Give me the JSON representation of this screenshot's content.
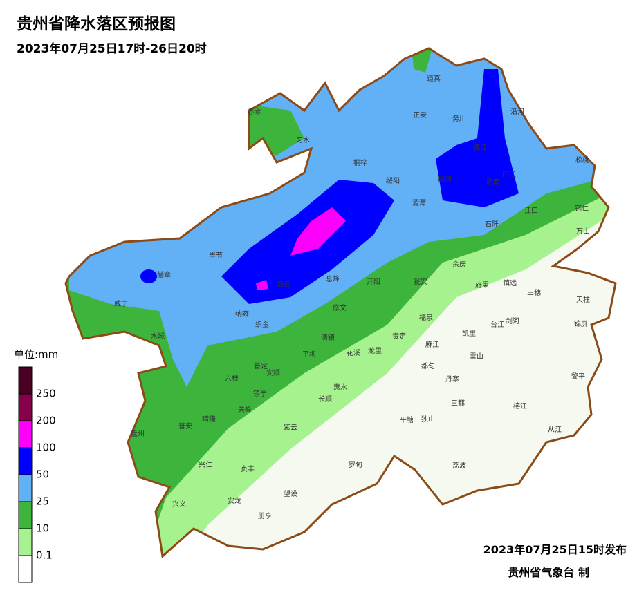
{
  "header": {
    "title": "贵州省降水落区预报图",
    "subtitle": "2023年07月25日17时-26日20时"
  },
  "legend": {
    "unit": "单位:mm",
    "ticks": [
      0.1,
      10,
      25,
      50,
      100,
      200,
      250
    ],
    "colors": [
      "#ffffff",
      "#a6f28e",
      "#3db53d",
      "#62b0f6",
      "#0000fe",
      "#fc00fc",
      "#860049",
      "#4a0022"
    ]
  },
  "counties": [
    "赤水",
    "习水",
    "道真",
    "正安",
    "务川",
    "沿河",
    "桐梓",
    "绥阳",
    "德江",
    "印江",
    "松桃",
    "凤冈",
    "思南",
    "湄潭",
    "江口",
    "铜仁",
    "石阡",
    "万山",
    "毕节",
    "赫章",
    "黔西",
    "息烽",
    "开阳",
    "瓮安",
    "余庆",
    "施秉",
    "镇远",
    "三穗",
    "天柱",
    "威宁",
    "纳雍",
    "织金",
    "修文",
    "福泉",
    "台江",
    "剑河",
    "锦屏",
    "水城",
    "清镇",
    "贵定",
    "麻江",
    "凯里",
    "雷山",
    "平坝",
    "花溪",
    "龙里",
    "都匀",
    "丹寨",
    "黎平",
    "普定",
    "安顺",
    "六枝",
    "惠水",
    "长顺",
    "镇宁",
    "三都",
    "榕江",
    "关岭",
    "平塘",
    "独山",
    "从江",
    "晴隆",
    "普安",
    "盘州",
    "紫云",
    "罗甸",
    "荔波",
    "兴仁",
    "贞丰",
    "望谟",
    "兴义",
    "安龙",
    "册亨"
  ],
  "footer": {
    "issued": "2023年07月25日15时发布",
    "issuer": "贵州省气象台 制"
  }
}
